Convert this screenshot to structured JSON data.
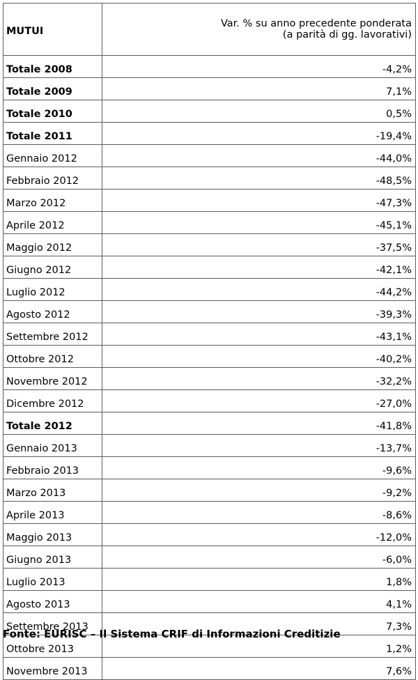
{
  "table": {
    "header": {
      "label": "MUTUI",
      "value_line1": "Var. % su anno precedente ponderata",
      "value_line2": "(a parità di gg. lavorativi)"
    },
    "rows": [
      {
        "label": "Totale 2008",
        "value": "-4,2%",
        "total": true
      },
      {
        "label": "Totale 2009",
        "value": "7,1%",
        "total": true
      },
      {
        "label": "Totale 2010",
        "value": "0,5%",
        "total": true
      },
      {
        "label": "Totale 2011",
        "value": "-19,4%",
        "total": true
      },
      {
        "label": "Gennaio 2012",
        "value": "-44,0%",
        "total": false
      },
      {
        "label": "Febbraio 2012",
        "value": "-48,5%",
        "total": false
      },
      {
        "label": "Marzo 2012",
        "value": "-47,3%",
        "total": false
      },
      {
        "label": "Aprile 2012",
        "value": "-45,1%",
        "total": false
      },
      {
        "label": "Maggio 2012",
        "value": "-37,5%",
        "total": false
      },
      {
        "label": "Giugno 2012",
        "value": "-42,1%",
        "total": false
      },
      {
        "label": "Luglio 2012",
        "value": "-44,2%",
        "total": false
      },
      {
        "label": "Agosto 2012",
        "value": "-39,3%",
        "total": false
      },
      {
        "label": "Settembre 2012",
        "value": "-43,1%",
        "total": false
      },
      {
        "label": "Ottobre 2012",
        "value": "-40,2%",
        "total": false
      },
      {
        "label": "Novembre 2012",
        "value": "-32,2%",
        "total": false
      },
      {
        "label": "Dicembre 2012",
        "value": "-27,0%",
        "total": false
      },
      {
        "label": "Totale 2012",
        "value": "-41,8%",
        "total": true
      },
      {
        "label": "Gennaio 2013",
        "value": "-13,7%",
        "total": false
      },
      {
        "label": "Febbraio 2013",
        "value": "-9,6%",
        "total": false
      },
      {
        "label": "Marzo 2013",
        "value": "-9,2%",
        "total": false
      },
      {
        "label": "Aprile 2013",
        "value": "-8,6%",
        "total": false
      },
      {
        "label": "Maggio 2013",
        "value": "-12,0%",
        "total": false
      },
      {
        "label": "Giugno 2013",
        "value": "-6,0%",
        "total": false
      },
      {
        "label": "Luglio 2013",
        "value": "1,8%",
        "total": false
      },
      {
        "label": "Agosto 2013",
        "value": "4,1%",
        "total": false
      },
      {
        "label": "Settembre 2013",
        "value": "7,3%",
        "total": false
      },
      {
        "label": "Ottobre 2013",
        "value": "1,2%",
        "total": false
      },
      {
        "label": "Novembre 2013",
        "value": "7,6%",
        "total": false
      }
    ]
  },
  "footer": {
    "source": "Fonte: EURISC – Il Sistema CRIF di Informazioni Creditizie"
  },
  "colors": {
    "border": "#5b5b5b",
    "text": "#000000",
    "background": "#ffffff"
  }
}
